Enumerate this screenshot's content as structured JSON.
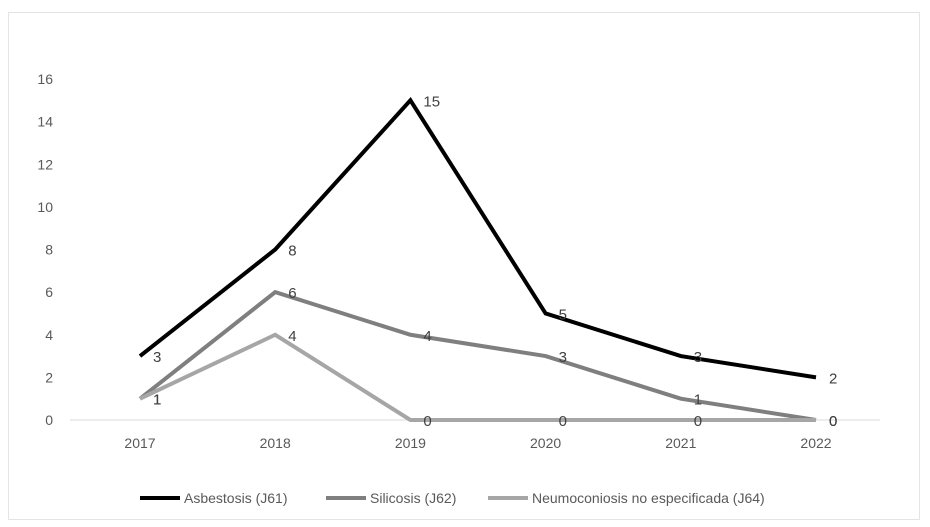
{
  "chart_data": {
    "type": "line",
    "title": "",
    "xlabel": "",
    "ylabel": "",
    "categories": [
      "2017",
      "2018",
      "2019",
      "2020",
      "2021",
      "2022"
    ],
    "ylim": [
      0,
      16
    ],
    "yticks": [
      0,
      2,
      4,
      6,
      8,
      10,
      12,
      14,
      16
    ],
    "grid": false,
    "legend_position": "bottom",
    "series": [
      {
        "name": "Asbestosis (J61)",
        "values": [
          3,
          8,
          15,
          5,
          3,
          2
        ],
        "color": "#000000"
      },
      {
        "name": "Silicosis (J62)",
        "values": [
          1,
          6,
          4,
          3,
          1,
          0
        ],
        "color": "#7f7f7f"
      },
      {
        "name": "Neumoconiosis no especificada (J64)",
        "values": [
          1,
          4,
          0,
          0,
          0,
          0
        ],
        "color": "#a6a6a6"
      }
    ]
  }
}
